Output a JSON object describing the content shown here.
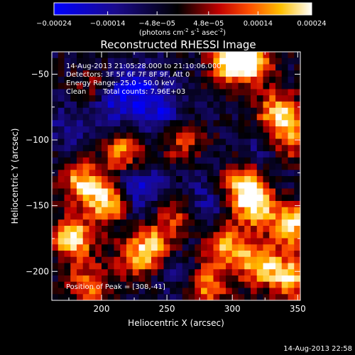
{
  "colorbar": {
    "tick_labels": [
      "-0.00024",
      "-0.00014",
      "-4.8e-05",
      "4.8e-05",
      "0.00014",
      "0.00024"
    ],
    "range": [
      -0.00024,
      0.00024
    ],
    "colormap": "blue-black-red-yellow-white",
    "units_base": "(photons cm",
    "units_exp1": "-2",
    "units_mid": " s",
    "units_exp2": "-1",
    "units_mid2": " asec",
    "units_exp3": "-2",
    "units_end": ")"
  },
  "timestamp": "14-Aug-2013 22:58",
  "chart_data": {
    "type": "heatmap",
    "title": "Reconstructed RHESSI Image",
    "xlabel": "Heliocentric X (arcsec)",
    "ylabel": "Heliocentric Y (arcsec)",
    "xlim": [
      162,
      352
    ],
    "ylim": [
      -222,
      -33
    ],
    "x_ticks": [
      200,
      250,
      300,
      350
    ],
    "y_ticks": [
      -50,
      -100,
      -150,
      -200
    ],
    "grid_size": [
      40,
      40
    ],
    "annotations": {
      "time_range": "14-Aug-2013 21:05:28.000 to 21:10:06.000",
      "detectors": "Detectors: 3F 5F 6F 7F 8F 9F, Att 0",
      "energy_range": "Energy Range: 25.0 - 50.0 keV",
      "clean": "Clean",
      "total_counts": "Total counts: 7.96E+03",
      "peak": "Position of Peak = [308,-41]"
    },
    "peak": [
      308,
      -41
    ],
    "bright_sources": [
      {
        "x": 205,
        "y": -147,
        "strength": 1.0
      },
      {
        "x": 178,
        "y": -175,
        "strength": 0.9
      },
      {
        "x": 185,
        "y": -132,
        "strength": 0.8
      },
      {
        "x": 215,
        "y": -110,
        "strength": 0.7
      },
      {
        "x": 300,
        "y": -40,
        "strength": 1.0
      },
      {
        "x": 315,
        "y": -40,
        "strength": 0.8
      },
      {
        "x": 335,
        "y": -80,
        "strength": 0.85
      },
      {
        "x": 345,
        "y": -100,
        "strength": 0.6
      },
      {
        "x": 310,
        "y": -135,
        "strength": 0.95
      },
      {
        "x": 318,
        "y": -152,
        "strength": 0.7
      },
      {
        "x": 295,
        "y": -180,
        "strength": 0.75
      },
      {
        "x": 320,
        "y": -195,
        "strength": 0.8
      },
      {
        "x": 345,
        "y": -165,
        "strength": 0.9
      },
      {
        "x": 345,
        "y": -205,
        "strength": 0.85
      },
      {
        "x": 255,
        "y": -155,
        "strength": 0.6
      },
      {
        "x": 240,
        "y": -180,
        "strength": 0.65
      },
      {
        "x": 225,
        "y": -190,
        "strength": 0.55
      },
      {
        "x": 280,
        "y": -210,
        "strength": 0.7
      },
      {
        "x": 190,
        "y": -210,
        "strength": 0.6
      },
      {
        "x": 260,
        "y": -100,
        "strength": 0.5
      },
      {
        "x": 195,
        "y": -62,
        "strength": 0.45
      }
    ],
    "dark_sources": [
      {
        "x": 205,
        "y": -70,
        "strength": 1.0
      },
      {
        "x": 245,
        "y": -80,
        "strength": 0.9
      },
      {
        "x": 230,
        "y": -60,
        "strength": 0.8
      },
      {
        "x": 215,
        "y": -135,
        "strength": 0.6
      },
      {
        "x": 235,
        "y": -140,
        "strength": 0.7
      },
      {
        "x": 275,
        "y": -150,
        "strength": 0.7
      },
      {
        "x": 260,
        "y": -205,
        "strength": 0.5
      },
      {
        "x": 175,
        "y": -90,
        "strength": 0.5
      },
      {
        "x": 325,
        "y": -110,
        "strength": 0.5
      }
    ]
  }
}
